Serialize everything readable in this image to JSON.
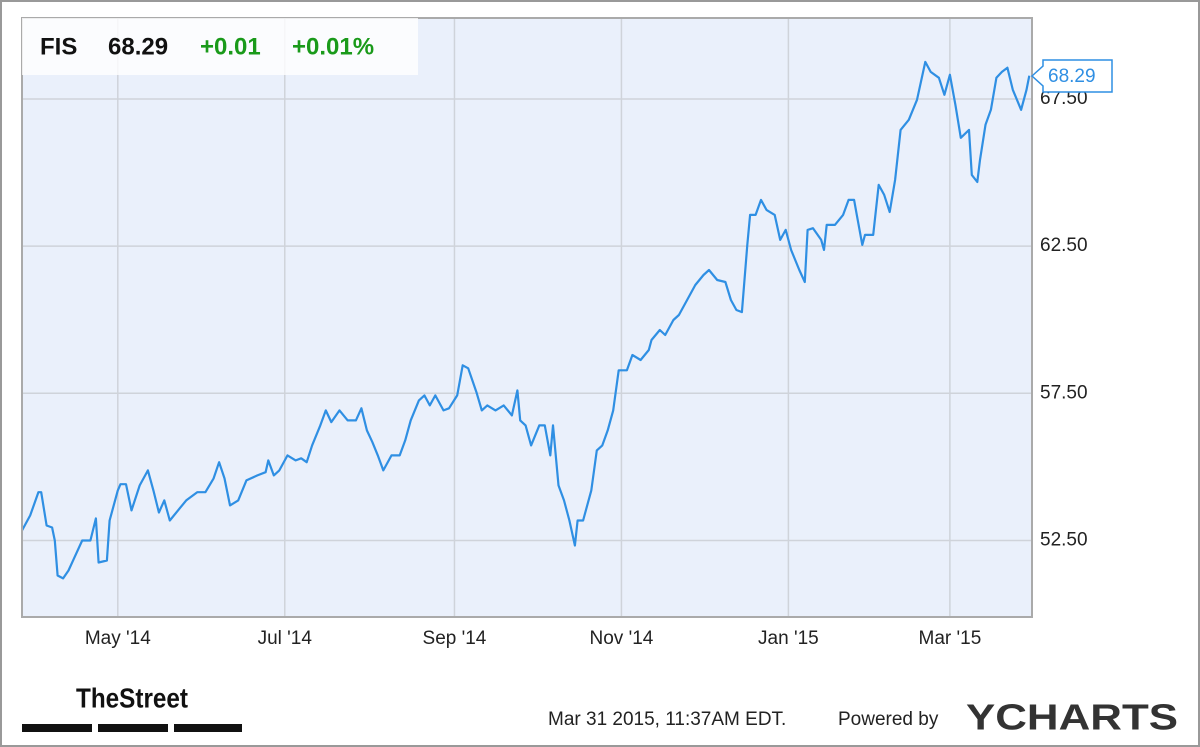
{
  "chart_data": {
    "type": "line",
    "symbol": "FIS",
    "change": "+0.01",
    "change_pct": "+0.01%",
    "timestamp": "Mar 31 2015, 11:37AM EDT.",
    "powered_by": "Powered by",
    "brand": "YCHARTS",
    "publisher": "TheStreet",
    "x": [
      -35,
      -32,
      -29,
      -28,
      -26,
      -24,
      -23,
      -22,
      -20,
      -18,
      -16,
      -13,
      -10,
      -8,
      -7,
      -4,
      -3,
      0,
      1,
      3,
      5,
      8,
      11,
      13,
      15,
      17,
      19,
      22,
      25,
      29,
      32,
      35,
      37,
      39,
      41,
      44,
      47,
      51,
      54,
      55,
      57,
      59,
      62,
      65,
      67,
      69,
      71,
      74,
      76,
      78,
      81,
      84,
      87,
      89,
      91,
      93,
      95,
      97,
      100,
      103,
      105,
      107,
      110,
      112,
      114,
      116,
      119,
      121,
      124,
      126,
      128,
      131,
      133,
      135,
      138,
      141,
      144,
      146,
      147,
      149,
      151,
      154,
      156,
      158,
      159,
      161,
      163,
      165,
      167,
      168,
      170,
      173,
      175,
      177,
      179,
      181,
      183,
      186,
      188,
      191,
      194,
      195,
      198,
      200,
      203,
      205,
      208,
      211,
      214,
      216,
      219,
      222,
      224,
      226,
      228,
      230,
      231,
      233,
      235,
      237,
      240,
      242,
      244,
      246,
      249,
      251,
      252,
      254,
      257,
      258,
      259,
      262,
      265,
      267,
      269,
      270,
      272,
      273,
      276,
      278,
      280,
      282,
      284,
      286,
      289,
      292,
      295,
      297,
      300,
      302,
      304,
      306,
      308,
      311,
      312,
      314,
      315,
      317,
      319,
      321,
      323,
      325,
      327,
      330,
      332,
      333
    ],
    "series": [
      {
        "name": "FIS",
        "color": "#2f8fe3",
        "values": [
          52.84,
          53.35,
          54.14,
          54.14,
          53.01,
          52.94,
          52.5,
          51.31,
          51.21,
          51.48,
          51.89,
          52.5,
          52.5,
          53.25,
          51.75,
          51.82,
          53.18,
          54.2,
          54.41,
          54.41,
          53.52,
          54.37,
          54.88,
          54.2,
          53.45,
          53.86,
          53.18,
          53.52,
          53.86,
          54.14,
          54.14,
          54.61,
          55.16,
          54.61,
          53.69,
          53.86,
          54.54,
          54.71,
          54.82,
          55.22,
          54.71,
          54.88,
          55.39,
          55.22,
          55.29,
          55.16,
          55.73,
          56.41,
          56.92,
          56.52,
          56.92,
          56.58,
          56.58,
          56.99,
          56.24,
          55.84,
          55.39,
          54.88,
          55.39,
          55.39,
          55.9,
          56.58,
          57.26,
          57.43,
          57.09,
          57.43,
          56.92,
          56.99,
          57.43,
          58.45,
          58.35,
          57.54,
          56.92,
          57.09,
          56.92,
          57.09,
          56.75,
          57.6,
          56.58,
          56.41,
          55.73,
          56.41,
          56.41,
          55.39,
          56.41,
          54.37,
          53.86,
          53.18,
          52.33,
          53.18,
          53.18,
          54.2,
          55.56,
          55.73,
          56.24,
          56.92,
          58.28,
          58.28,
          58.8,
          58.63,
          58.97,
          59.31,
          59.65,
          59.48,
          59.99,
          60.16,
          60.67,
          61.18,
          61.52,
          61.69,
          61.35,
          61.28,
          60.67,
          60.33,
          60.26,
          62.54,
          63.56,
          63.56,
          64.07,
          63.73,
          63.56,
          62.71,
          63.05,
          62.37,
          61.69,
          61.28,
          63.05,
          63.11,
          62.71,
          62.37,
          63.22,
          63.22,
          63.56,
          64.07,
          64.07,
          63.56,
          62.54,
          62.88,
          62.88,
          64.58,
          64.24,
          63.66,
          64.75,
          66.45,
          66.79,
          67.47,
          68.76,
          68.42,
          68.22,
          67.64,
          68.32,
          67.3,
          66.18,
          66.45,
          64.92,
          64.68,
          65.43,
          66.62,
          67.13,
          68.22,
          68.42,
          68.56,
          67.81,
          67.13,
          67.81,
          68.29
        ]
      }
    ],
    "xlim": [
      -35,
      334
    ],
    "xticks": [
      {
        "value": 0,
        "label": "May '14"
      },
      {
        "value": 61,
        "label": "Jul '14"
      },
      {
        "value": 123,
        "label": "Sep '14"
      },
      {
        "value": 184,
        "label": "Nov '14"
      },
      {
        "value": 245,
        "label": "Jan '15"
      },
      {
        "value": 304,
        "label": "Mar '15"
      }
    ],
    "ylim": [
      49.9,
      70.25
    ],
    "yticks": [
      {
        "value": 52.5,
        "label": "52.50"
      },
      {
        "value": 57.5,
        "label": "57.50"
      },
      {
        "value": 62.5,
        "label": "62.50"
      },
      {
        "value": 67.5,
        "label": "67.50"
      }
    ],
    "grid": true
  }
}
